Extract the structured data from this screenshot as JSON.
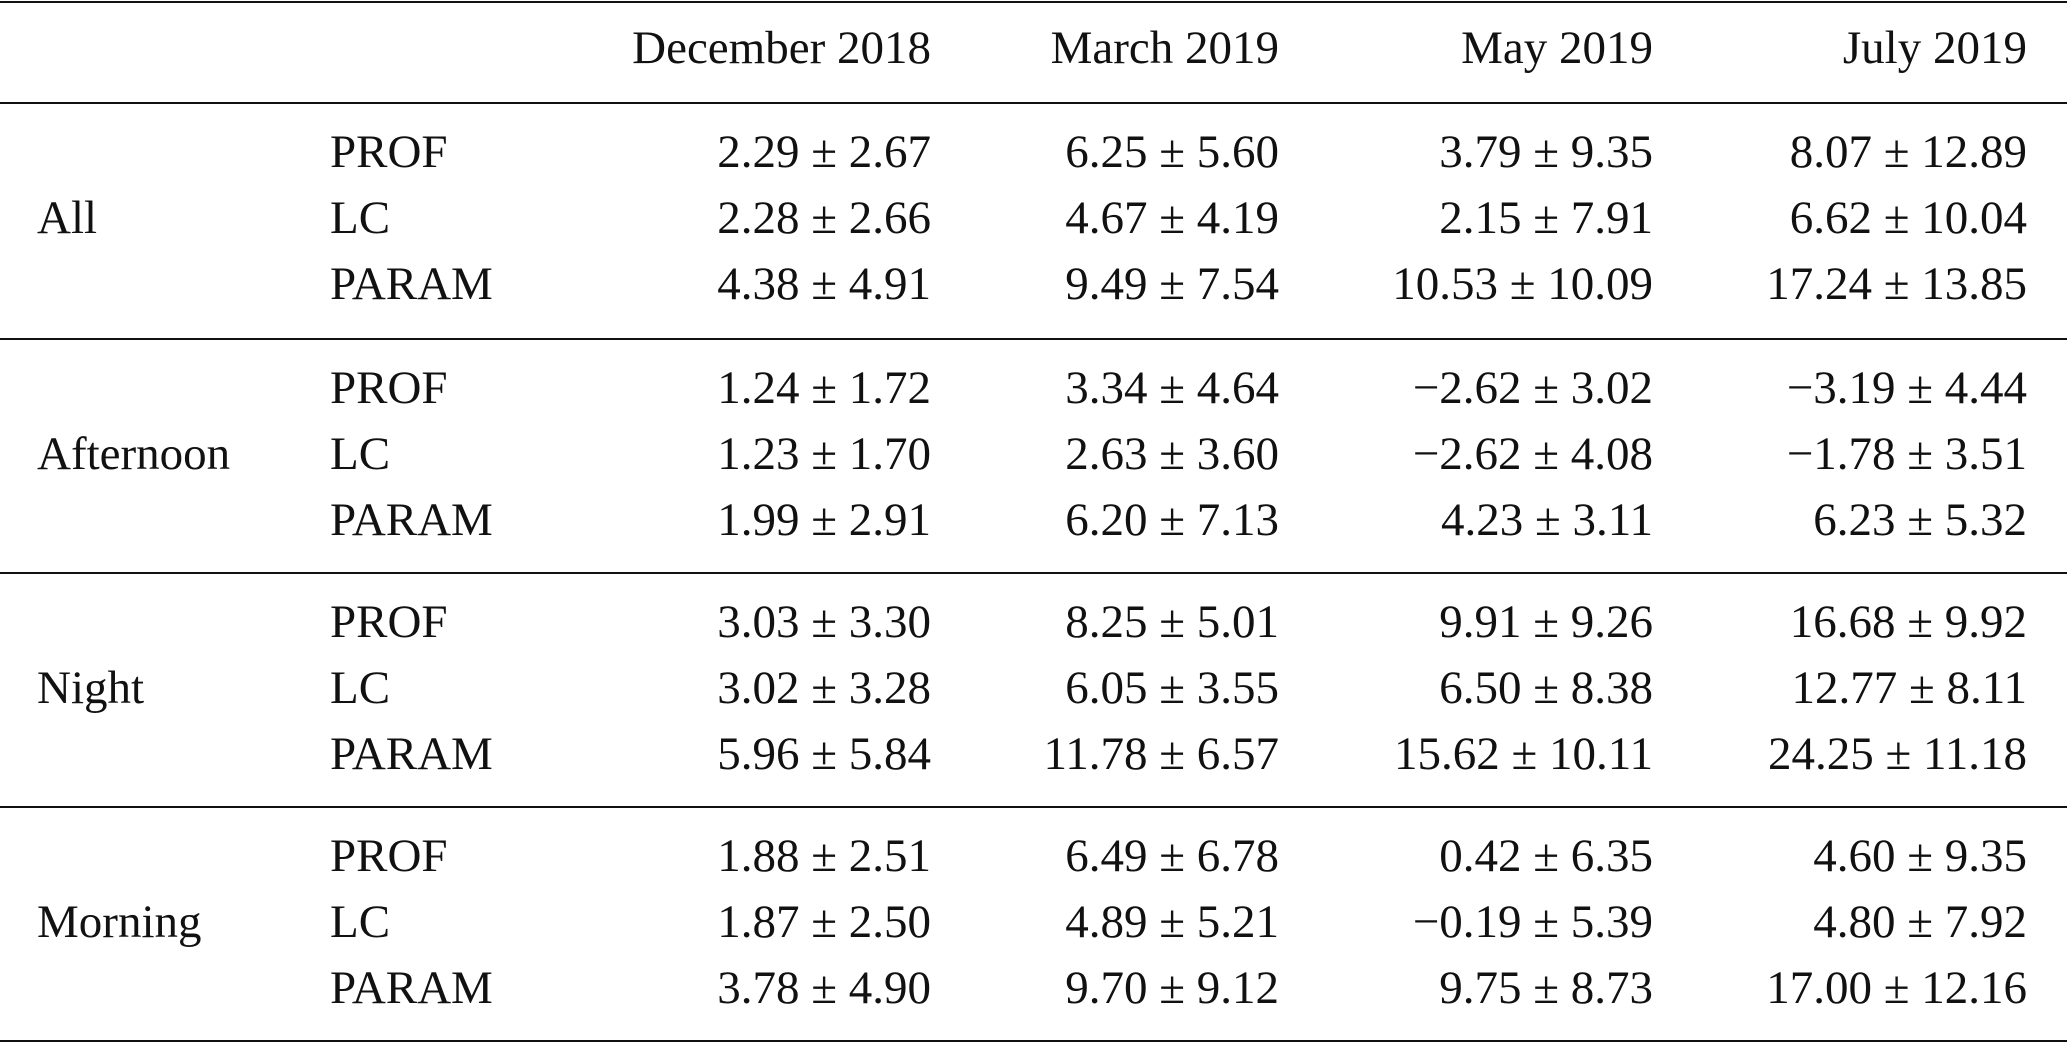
{
  "table": {
    "columns": [
      "December 2018",
      "March 2019",
      "May 2019",
      "July 2019"
    ],
    "groups": [
      {
        "label": "All",
        "rows": [
          {
            "method": "PROF",
            "cells": [
              "2.29 ± 2.67",
              "6.25 ± 5.60",
              "3.79 ± 9.35",
              "8.07 ± 12.89"
            ]
          },
          {
            "method": "LC",
            "cells": [
              "2.28 ± 2.66",
              "4.67 ± 4.19",
              "2.15 ± 7.91",
              "6.62 ± 10.04"
            ]
          },
          {
            "method": "PARAM",
            "cells": [
              "4.38 ± 4.91",
              "9.49 ± 7.54",
              "10.53 ± 10.09",
              "17.24 ± 13.85"
            ]
          }
        ]
      },
      {
        "label": "Afternoon",
        "rows": [
          {
            "method": "PROF",
            "cells": [
              "1.24 ± 1.72",
              "3.34 ± 4.64",
              "−2.62 ± 3.02",
              "−3.19 ± 4.44"
            ]
          },
          {
            "method": "LC",
            "cells": [
              "1.23 ± 1.70",
              "2.63 ± 3.60",
              "−2.62 ± 4.08",
              "−1.78 ± 3.51"
            ]
          },
          {
            "method": "PARAM",
            "cells": [
              "1.99 ± 2.91",
              "6.20 ± 7.13",
              "4.23 ± 3.11",
              "6.23 ± 5.32"
            ]
          }
        ]
      },
      {
        "label": "Night",
        "rows": [
          {
            "method": "PROF",
            "cells": [
              "3.03 ± 3.30",
              "8.25 ± 5.01",
              "9.91 ± 9.26",
              "16.68 ± 9.92"
            ]
          },
          {
            "method": "LC",
            "cells": [
              "3.02 ± 3.28",
              "6.05 ± 3.55",
              "6.50 ± 8.38",
              "12.77 ± 8.11"
            ]
          },
          {
            "method": "PARAM",
            "cells": [
              "5.96 ± 5.84",
              "11.78 ± 6.57",
              "15.62 ± 10.11",
              "24.25 ± 11.18"
            ]
          }
        ]
      },
      {
        "label": "Morning",
        "rows": [
          {
            "method": "PROF",
            "cells": [
              "1.88 ± 2.51",
              "6.49 ± 6.78",
              "0.42 ± 6.35",
              "4.60 ± 9.35"
            ]
          },
          {
            "method": "LC",
            "cells": [
              "1.87 ± 2.50",
              "4.89 ± 5.21",
              "−0.19 ± 5.39",
              "4.80 ± 7.92"
            ]
          },
          {
            "method": "PARAM",
            "cells": [
              "3.78 ± 4.90",
              "9.70 ± 9.12",
              "9.75 ± 8.73",
              "17.00 ± 12.16"
            ]
          }
        ]
      }
    ]
  }
}
